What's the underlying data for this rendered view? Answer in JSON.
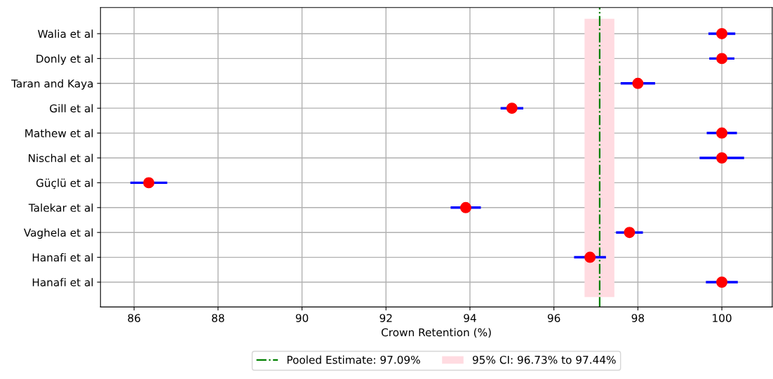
{
  "chart_data": {
    "type": "scatter",
    "orientation": "horizontal",
    "xlabel": "Crown Retention (%)",
    "categories": [
      "Walia et al",
      "Donly et al",
      "Taran and Kaya",
      "Gill et al",
      "Mathew et al",
      "Nischal et al",
      "Güçlü et al",
      "Talekar et al",
      "Vaghela et al",
      "Hanafi et al",
      "Hanafi et al"
    ],
    "color": "#ff0000",
    "values": [
      100,
      100,
      98,
      95,
      100,
      100,
      86.35,
      93.9,
      97.8,
      96.86,
      100
    ],
    "errors": [
      0.32,
      0.3,
      0.41,
      0.27,
      0.36,
      0.53,
      0.44,
      0.36,
      0.32,
      0.38,
      0.38
    ],
    "xlim": [
      85.2,
      101.2
    ],
    "xticks": [
      86,
      88,
      90,
      92,
      94,
      96,
      98,
      100
    ],
    "ref_lines": [
      {
        "axis": "x",
        "value": 97.09,
        "label": "Pooled Estimate: 97.09%",
        "color": "#008000",
        "line_style": "dashdot"
      }
    ],
    "bands": [
      {
        "axis": "x",
        "from": 96.73,
        "to": 97.44,
        "label": "95% CI: 96.73% to 97.44%",
        "color": "#ffdbe1"
      }
    ],
    "grid": true,
    "legend": "bottom",
    "marker": "circle"
  }
}
